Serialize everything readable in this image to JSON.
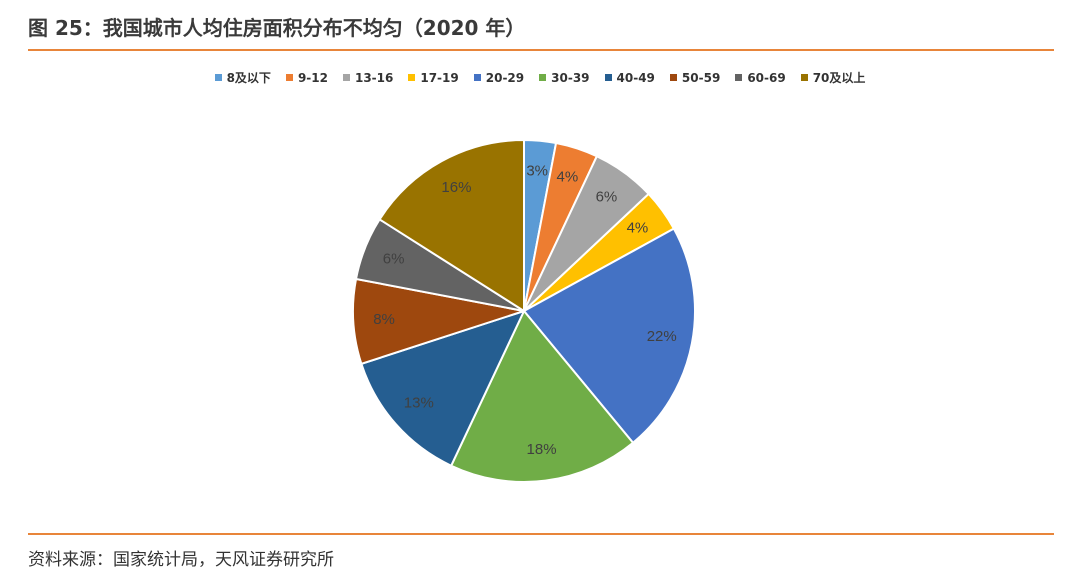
{
  "figure": {
    "title": "图 25：我国城市人均住房面积分布不均匀（2020 年）",
    "source": "资料来源：国家统计局，天风证券研究所"
  },
  "chart_data": {
    "type": "pie",
    "categories": [
      "8及以下",
      "9-12",
      "13-16",
      "17-19",
      "20-29",
      "30-39",
      "40-49",
      "50-59",
      "60-69",
      "70及以上"
    ],
    "values": [
      3,
      4,
      6,
      4,
      22,
      18,
      13,
      8,
      6,
      16
    ],
    "labels": [
      "3%",
      "4%",
      "6%",
      "4%",
      "22%",
      "18%",
      "13%",
      "8%",
      "6%",
      "16%"
    ],
    "colors": [
      "#5b9bd5",
      "#ed7d31",
      "#a5a5a5",
      "#ffc000",
      "#4472c4",
      "#70ad47",
      "#255e91",
      "#9e480e",
      "#636363",
      "#997300"
    ],
    "unit": "%",
    "start": "12 o'clock",
    "direction": "clockwise",
    "legend_position": "top"
  }
}
